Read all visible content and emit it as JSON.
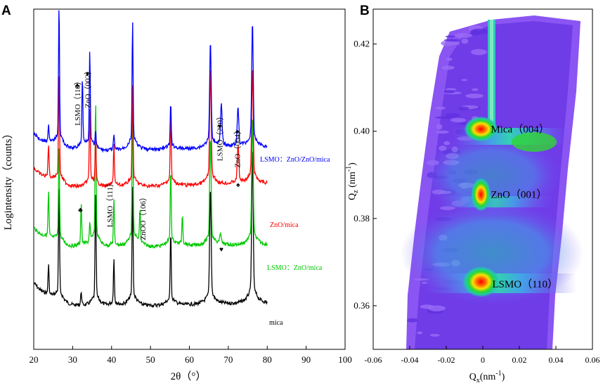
{
  "chart_data": [
    {
      "panel_label": "A",
      "type": "line",
      "xlabel": "2θ（°）",
      "ylabel": "Logintensity（counts）",
      "xlim": [
        20,
        100
      ],
      "xticks": [
        "20",
        "30",
        "40",
        "50",
        "60",
        "70",
        "80",
        "90",
        "100"
      ],
      "x_range_data": [
        20,
        80
      ],
      "series": [
        {
          "name": "mica",
          "label": "mica",
          "color": "#000000",
          "offset": 0,
          "peaks": [
            [
              23.8,
              40
            ],
            [
              26.5,
              150
            ],
            [
              32.2,
              18
            ],
            [
              35.9,
              150
            ],
            [
              40.6,
              60
            ],
            [
              45.4,
              155
            ],
            [
              55.2,
              95
            ],
            [
              65.4,
              150
            ],
            [
              76.2,
              200
            ]
          ]
        },
        {
          "name": "LSMO: ZnO/mica",
          "label": "LSMO：ZnO/mica",
          "color": "#00c800",
          "offset": 1,
          "peaks": [
            [
              23.8,
              60
            ],
            [
              26.5,
              130
            ],
            [
              32.2,
              55
            ],
            [
              34.4,
              25
            ],
            [
              35.9,
              190
            ],
            [
              40.6,
              60
            ],
            [
              45.4,
              185
            ],
            [
              47.3,
              45
            ],
            [
              55.2,
              100
            ],
            [
              58.2,
              40
            ],
            [
              65.4,
              140
            ],
            [
              68.0,
              15
            ],
            [
              76.2,
              165
            ]
          ]
        },
        {
          "name": "ZnO/mica",
          "label": "ZnO/mica",
          "color": "#ff0000",
          "offset": 2,
          "peaks": [
            [
              23.8,
              45
            ],
            [
              26.5,
              145
            ],
            [
              34.4,
              100
            ],
            [
              35.9,
              60
            ],
            [
              40.6,
              55
            ],
            [
              45.4,
              130
            ],
            [
              55.2,
              95
            ],
            [
              65.4,
              150
            ],
            [
              72.5,
              50
            ],
            [
              76.2,
              150
            ]
          ]
        },
        {
          "name": "LSMO: ZnO/ZnO/mica",
          "label": "LSMO：ZnO/ZnO/mica",
          "color": "#0000ff",
          "offset": 3,
          "peaks": [
            [
              23.8,
              25
            ],
            [
              26.5,
              185
            ],
            [
              32.5,
              90
            ],
            [
              34.4,
              125
            ],
            [
              35.9,
              20
            ],
            [
              40.6,
              20
            ],
            [
              45.4,
              165
            ],
            [
              55.2,
              60
            ],
            [
              65.4,
              135
            ],
            [
              68.2,
              55
            ],
            [
              72.5,
              50
            ],
            [
              76.2,
              160
            ]
          ]
        }
      ],
      "annotations": [
        {
          "text": "LSMO（110）",
          "x": 31.2,
          "symbol": "♣"
        },
        {
          "text": "ZnO（002）",
          "x": 33.8,
          "symbol": "♦"
        },
        {
          "text": "LSMO（220）",
          "x": 67.8,
          "symbol": "♥"
        },
        {
          "text": "ZnO（004）",
          "x": 72.3,
          "symbol": "♠"
        },
        {
          "text": "LSMO（111）",
          "x": 39.5,
          "symbol": ""
        },
        {
          "text": "ZnOO（106）",
          "x": 48.0,
          "symbol": ""
        },
        {
          "text": "",
          "x": 32.0,
          "symbol": "♣"
        },
        {
          "text": "",
          "x": 72.5,
          "symbol": "♠"
        },
        {
          "text": "",
          "x": 68.2,
          "symbol": "♥"
        }
      ]
    },
    {
      "panel_label": "B",
      "type": "heatmap",
      "xlabel": "Qx(nm-1)",
      "xlabel_main": "Q",
      "xlabel_sub": "x",
      "xlabel_unit": "(nm",
      "xlabel_sup": "-1",
      "xlabel_close": ")",
      "ylabel_main": "Q",
      "ylabel_sub": "z",
      "ylabel_unit": " (nm",
      "ylabel_sup": "-1",
      "ylabel_close": ")",
      "xlim": [
        -0.06,
        0.06
      ],
      "ylim": [
        0.35,
        0.428
      ],
      "xticks": [
        "-0.06",
        "-0.04",
        "-0.02",
        "0",
        "0.02",
        "0.04",
        "0.06"
      ],
      "yticks": [
        "0.36",
        "0.38",
        "0.40",
        "0.42"
      ],
      "spots": [
        {
          "label": "Mica（004）",
          "qx": -0.001,
          "qz": 0.4005
        },
        {
          "label": "ZnO（001）",
          "qx": -0.001,
          "qz": 0.3855
        },
        {
          "label": "LSMO（110）",
          "qx": -0.001,
          "qz": 0.3655
        }
      ]
    }
  ]
}
